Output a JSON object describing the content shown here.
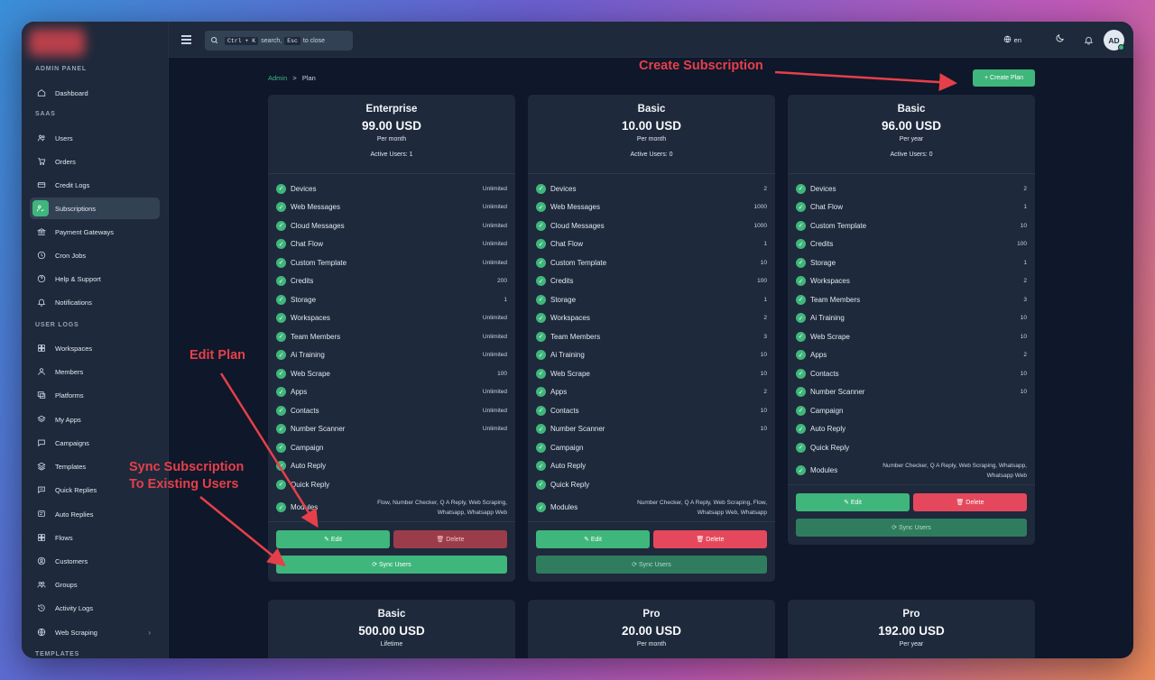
{
  "colors": {
    "accent": "#3fb67b",
    "danger": "#e5485c",
    "annotation": "#e5404a",
    "background": "#0f172a",
    "panel": "#1e293b"
  },
  "sidebar": {
    "sections": [
      {
        "title": "ADMIN PANEL",
        "items": [
          {
            "label": "Dashboard",
            "icon": "home-icon"
          }
        ]
      },
      {
        "title": "SAAS",
        "items": [
          {
            "label": "Users",
            "icon": "users-icon"
          },
          {
            "label": "Orders",
            "icon": "cart-icon"
          },
          {
            "label": "Credit Logs",
            "icon": "card-icon"
          },
          {
            "label": "Subscriptions",
            "icon": "user-check-icon",
            "active": true
          },
          {
            "label": "Payment Gateways",
            "icon": "bank-icon"
          },
          {
            "label": "Cron Jobs",
            "icon": "clock-icon"
          },
          {
            "label": "Help & Support",
            "icon": "help-icon"
          },
          {
            "label": "Notifications",
            "icon": "bell-icon"
          }
        ]
      },
      {
        "title": "USER LOGS",
        "items": [
          {
            "label": "Workspaces",
            "icon": "grid-icon"
          },
          {
            "label": "Members",
            "icon": "user-icon"
          },
          {
            "label": "Platforms",
            "icon": "platform-icon"
          },
          {
            "label": "My Apps",
            "icon": "apps-icon"
          },
          {
            "label": "Campaigns",
            "icon": "chat-icon"
          },
          {
            "label": "Templates",
            "icon": "layers-icon"
          },
          {
            "label": "Quick Replies",
            "icon": "reply-icon"
          },
          {
            "label": "Auto Replies",
            "icon": "message-icon"
          },
          {
            "label": "Flows",
            "icon": "grid-icon"
          },
          {
            "label": "Customers",
            "icon": "customer-icon"
          },
          {
            "label": "Groups",
            "icon": "groups-icon"
          },
          {
            "label": "Activity Logs",
            "icon": "history-icon"
          },
          {
            "label": "Web Scraping",
            "icon": "globe-icon",
            "chevron": true
          }
        ]
      },
      {
        "title": "TEMPLATES",
        "items": []
      }
    ]
  },
  "topbar": {
    "search_ctrl": "Ctrl + K",
    "search_mid": "search,",
    "search_esc": "Esc",
    "search_tail": "to close",
    "lang": "en",
    "avatar": "AD"
  },
  "breadcrumb": {
    "home": "Admin",
    "sep": ">",
    "current": "Plan"
  },
  "create_button": "+ Create Plan",
  "buttons": {
    "edit": "✎ Edit",
    "delete": "🗑 Delete",
    "sync": "⟳ Sync Users"
  },
  "plans": [
    {
      "name": "Enterprise",
      "price": "99.00 USD",
      "period": "Per month",
      "active": "Active Users: 1",
      "features": [
        [
          "Devices",
          "Unlimited"
        ],
        [
          "Web Messages",
          "Unlimited"
        ],
        [
          "Cloud Messages",
          "Unlimited"
        ],
        [
          "Chat Flow",
          "Unlimited"
        ],
        [
          "Custom Template",
          "Unlimited"
        ],
        [
          "Credits",
          "200"
        ],
        [
          "Storage",
          "1"
        ],
        [
          "Workspaces",
          "Unlimited"
        ],
        [
          "Team Members",
          "Unlimited"
        ],
        [
          "Ai Training",
          "Unlimited"
        ],
        [
          "Web Scrape",
          "100"
        ],
        [
          "Apps",
          "Unlimited"
        ],
        [
          "Contacts",
          "Unlimited"
        ],
        [
          "Number Scanner",
          "Unlimited"
        ],
        [
          "Campaign",
          ""
        ],
        [
          "Auto Reply",
          ""
        ],
        [
          "Quick Reply",
          ""
        ]
      ],
      "modules": "Flow, Number Checker, Q A Reply, Web Scraping, Whatsapp, Whatsapp Web"
    },
    {
      "name": "Basic",
      "price": "10.00 USD",
      "period": "Per month",
      "active": "Active Users: 0",
      "features": [
        [
          "Devices",
          "2"
        ],
        [
          "Web Messages",
          "1000"
        ],
        [
          "Cloud Messages",
          "1000"
        ],
        [
          "Chat Flow",
          "1"
        ],
        [
          "Custom Template",
          "10"
        ],
        [
          "Credits",
          "100"
        ],
        [
          "Storage",
          "1"
        ],
        [
          "Workspaces",
          "2"
        ],
        [
          "Team Members",
          "3"
        ],
        [
          "Ai Training",
          "10"
        ],
        [
          "Web Scrape",
          "10"
        ],
        [
          "Apps",
          "2"
        ],
        [
          "Contacts",
          "10"
        ],
        [
          "Number Scanner",
          "10"
        ],
        [
          "Campaign",
          ""
        ],
        [
          "Auto Reply",
          ""
        ],
        [
          "Quick Reply",
          ""
        ]
      ],
      "modules": "Number Checker, Q A Reply, Web Scraping, Flow, Whatsapp Web, Whatsapp"
    },
    {
      "name": "Basic",
      "price": "96.00 USD",
      "period": "Per year",
      "active": "Active Users: 0",
      "features": [
        [
          "Devices",
          "2"
        ],
        [
          "Chat Flow",
          "1"
        ],
        [
          "Custom Template",
          "10"
        ],
        [
          "Credits",
          "100"
        ],
        [
          "Storage",
          "1"
        ],
        [
          "Workspaces",
          "2"
        ],
        [
          "Team Members",
          "3"
        ],
        [
          "Ai Training",
          "10"
        ],
        [
          "Web Scrape",
          "10"
        ],
        [
          "Apps",
          "2"
        ],
        [
          "Contacts",
          "10"
        ],
        [
          "Number Scanner",
          "10"
        ],
        [
          "Campaign",
          ""
        ],
        [
          "Auto Reply",
          ""
        ],
        [
          "Quick Reply",
          ""
        ]
      ],
      "modules": "Number Checker, Q A Reply, Web Scraping, Whatsapp, Whatsapp Web"
    },
    {
      "name": "Basic",
      "price": "500.00 USD",
      "period": "Lifetime"
    },
    {
      "name": "Pro",
      "price": "20.00 USD",
      "period": "Per month"
    },
    {
      "name": "Pro",
      "price": "192.00 USD",
      "period": "Per year"
    }
  ],
  "modules_label": "Modules",
  "annotations": {
    "create": "Create Subscription",
    "edit": "Edit Plan",
    "sync_line1": "Sync Subscription",
    "sync_line2": "To Existing Users"
  }
}
